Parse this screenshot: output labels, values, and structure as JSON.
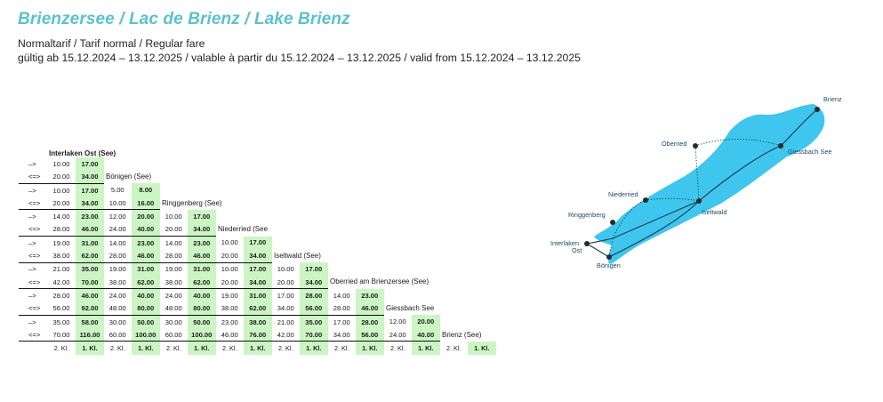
{
  "header": {
    "title": "Brienzersee / Lac de Brienz / Lake Brienz",
    "tariff": "Normaltarif / Tarif normal / Regular fare",
    "validity": "gültig ab 15.12.2024 – 13.12.2025 / valable à partir du 15.12.2024 – 13.12.2025 / valid from 15.12.2024 – 13.12.2025"
  },
  "fare_table": {
    "origin": "Interlaken Ost (See)",
    "oneway_symbol": "–>",
    "return_symbol": "<=>",
    "class_labels": {
      "second": "2. Kl.",
      "first": "1. Kl."
    },
    "rows": [
      {
        "station": "Bönigen (See)",
        "oneway": [
          [
            "10.00",
            "17.00"
          ]
        ],
        "return": [
          [
            "20.00",
            "34.00"
          ]
        ]
      },
      {
        "station": "Ringgenberg (See)",
        "oneway": [
          [
            "10.00",
            "17.00"
          ],
          [
            "5.00",
            "8.00"
          ]
        ],
        "return": [
          [
            "20.00",
            "34.00"
          ],
          [
            "10.00",
            "16.00"
          ]
        ]
      },
      {
        "station": "Niederried (See",
        "oneway": [
          [
            "14.00",
            "23.00"
          ],
          [
            "12.00",
            "20.00"
          ],
          [
            "10.00",
            "17.00"
          ]
        ],
        "return": [
          [
            "28.00",
            "46.00"
          ],
          [
            "24.00",
            "40.00"
          ],
          [
            "20.00",
            "34.00"
          ]
        ]
      },
      {
        "station": "Iseltwald (See)",
        "oneway": [
          [
            "19.00",
            "31.00"
          ],
          [
            "14.00",
            "23.00"
          ],
          [
            "14.00",
            "23.00"
          ],
          [
            "10.00",
            "17.00"
          ]
        ],
        "return": [
          [
            "38.00",
            "62.00"
          ],
          [
            "28.00",
            "46.00"
          ],
          [
            "28.00",
            "46.00"
          ],
          [
            "20.00",
            "34.00"
          ]
        ]
      },
      {
        "station": "Oberried am Brienzersee (See)",
        "oneway": [
          [
            "21.00",
            "35.00"
          ],
          [
            "19.00",
            "31.00"
          ],
          [
            "19.00",
            "31.00"
          ],
          [
            "10.00",
            "17.00"
          ],
          [
            "10.00",
            "17.00"
          ]
        ],
        "return": [
          [
            "42.00",
            "70.00"
          ],
          [
            "38.00",
            "62.00"
          ],
          [
            "38.00",
            "62.00"
          ],
          [
            "20.00",
            "34.00"
          ],
          [
            "20.00",
            "34.00"
          ]
        ]
      },
      {
        "station": "Giessbach See",
        "oneway": [
          [
            "28.00",
            "46.00"
          ],
          [
            "24.00",
            "40.00"
          ],
          [
            "24.00",
            "40.00"
          ],
          [
            "19.00",
            "31.00"
          ],
          [
            "17.00",
            "28.00"
          ],
          [
            "14.00",
            "23.00"
          ]
        ],
        "return": [
          [
            "56.00",
            "92.00"
          ],
          [
            "48.00",
            "80.00"
          ],
          [
            "48.00",
            "80.00"
          ],
          [
            "38.00",
            "62.00"
          ],
          [
            "34.00",
            "56.00"
          ],
          [
            "28.00",
            "46.00"
          ]
        ]
      },
      {
        "station": "Brienz (See)",
        "oneway": [
          [
            "35.00",
            "58.00"
          ],
          [
            "30.00",
            "50.00"
          ],
          [
            "30.00",
            "50.00"
          ],
          [
            "23.00",
            "38.00"
          ],
          [
            "21.00",
            "35.00"
          ],
          [
            "17.00",
            "28.00"
          ],
          [
            "12.00",
            "20.00"
          ]
        ],
        "return": [
          [
            "70.00",
            "116.00"
          ],
          [
            "60.00",
            "100.00"
          ],
          [
            "60.00",
            "100.00"
          ],
          [
            "46.00",
            "76.00"
          ],
          [
            "42.00",
            "70.00"
          ],
          [
            "34.00",
            "56.00"
          ],
          [
            "24.00",
            "40.00"
          ]
        ]
      }
    ]
  },
  "map": {
    "lake_color": "#3fc6ee",
    "route_color": "#1d3a4c",
    "label_color": "#1d4a68",
    "stations": [
      "Brienz",
      "Oberried",
      "Giessbach See",
      "Niederried",
      "Ringgenberg",
      "Iseltwald",
      "Interlaken",
      "Ost",
      "Bönigen"
    ]
  },
  "colors": {
    "title": "#5ac2cc",
    "first_class_bg": "#ccf5c4"
  }
}
